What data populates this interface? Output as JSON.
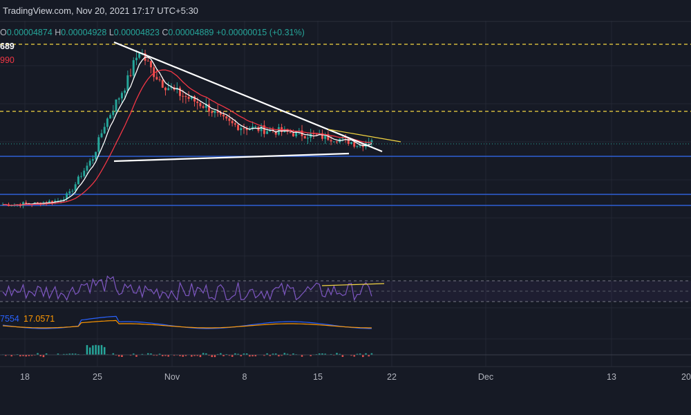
{
  "header": {
    "source": "TradingView.com, Nov 20, 2021 17:17 UTC+5:30",
    "open_label": "O",
    "open_value": "0.00004874",
    "high_label": "H",
    "high_value": "0.00004928",
    "low_label": "L",
    "low_value": "0.00004823",
    "close_label": "C",
    "close_value": "0.00004889",
    "change": "+0.00000015 (+0.31%)",
    "ma_fast_value": "689",
    "ma_slow_value": "990"
  },
  "macd_pane": {
    "value_a": "7554",
    "value_b": "17.0571"
  },
  "colors": {
    "background": "#161a25",
    "grid": "#232734",
    "up": "#26a69a",
    "down": "#ef5350",
    "ma_fast": "#ffffff",
    "ma_slow": "#f23645",
    "rsi": "#7e57c2",
    "resistance_dashed": "#f5d742",
    "support_blue": "#2f5fd6",
    "macd": "#2962ff",
    "signal": "#ff9800"
  },
  "chart_data": {
    "type": "candlestick",
    "x_ticks": [
      "18",
      "25",
      "Nov",
      "8",
      "15",
      "22",
      "Dec",
      "13",
      "20"
    ],
    "price_series": [
      [
        0,
        2.5e-05
      ],
      [
        1,
        2.51e-05
      ],
      [
        2,
        2.53e-05
      ],
      [
        3,
        2.54e-05
      ],
      [
        4,
        2.6e-05
      ],
      [
        5,
        2.65e-05
      ],
      [
        6,
        2.9e-05
      ],
      [
        7,
        3.6e-05
      ],
      [
        8,
        4.2e-05
      ],
      [
        9,
        5.4e-05
      ],
      [
        10,
        6.2e-05
      ],
      [
        11,
        7e-05
      ],
      [
        12,
        8.1e-05
      ],
      [
        13,
        7.4e-05
      ],
      [
        14,
        6.9e-05
      ],
      [
        15,
        6.6e-05
      ],
      [
        16,
        6.4e-05
      ],
      [
        17,
        6.2e-05
      ],
      [
        18,
        6e-05
      ],
      [
        19,
        5.6e-05
      ],
      [
        20,
        5.4e-05
      ],
      [
        21,
        5.3e-05
      ],
      [
        22,
        5.25e-05
      ],
      [
        23,
        5.2e-05
      ],
      [
        24,
        5.15e-05
      ],
      [
        25,
        5.1e-05
      ],
      [
        26,
        5.05e-05
      ],
      [
        27,
        5e-05
      ],
      [
        28,
        4.95e-05
      ],
      [
        29,
        4.9e-05
      ],
      [
        30,
        4.8e-05
      ],
      [
        31,
        4.65e-05
      ],
      [
        32,
        4.89e-05
      ]
    ],
    "horizontal_levels": {
      "dashed_yellow": [
        8.2e-05,
        5.8e-05
      ],
      "blue_solid": [
        4.7e-05,
        3.2e-05,
        3.05e-05
      ]
    },
    "pattern": "descending triangle",
    "rsi_band": [
      30,
      70
    ],
    "indicators": [
      "MA fast",
      "MA slow",
      "RSI",
      "MACD"
    ]
  }
}
